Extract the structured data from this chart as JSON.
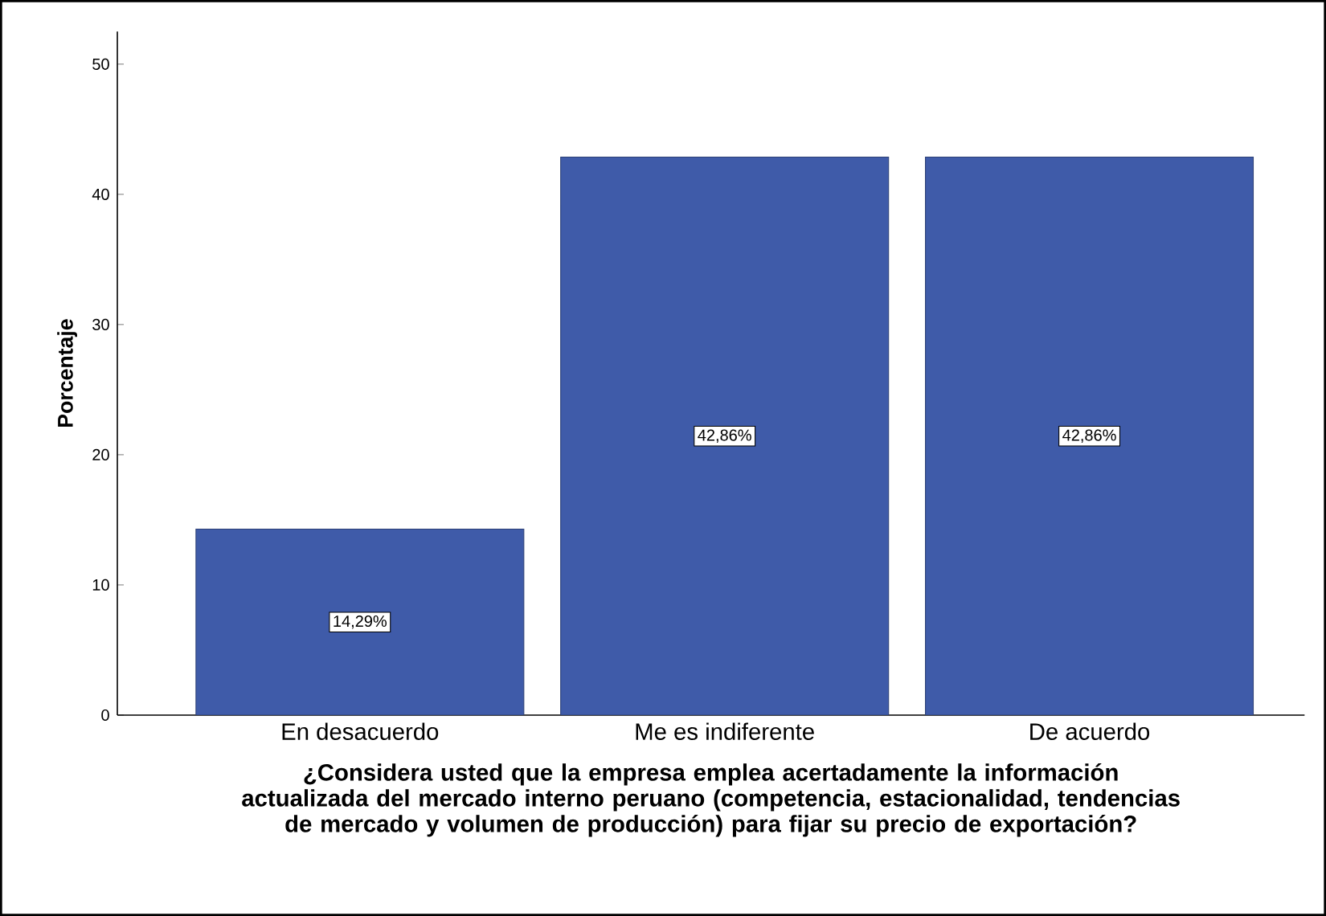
{
  "chart_data": {
    "type": "bar",
    "xlabel": "¿Considera usted que la empresa emplea acertadamente la información actualizada del mercado interno peruano (competencia, estacionalidad, tendencias de mercado y volumen de producción) para fijar su precio de exportación?",
    "ylabel": "Porcentaje",
    "categories": [
      "En desacuerdo",
      "Me es indiferente",
      "De acuerdo"
    ],
    "values": [
      14.29,
      42.86,
      42.86
    ],
    "value_labels": [
      "14,29%",
      "42,86%",
      "42,86%"
    ],
    "color": "#3f5ba9",
    "ylim": [
      0,
      52.5
    ],
    "yticks": [
      0,
      10,
      20,
      30,
      40,
      50
    ],
    "grid": false
  }
}
